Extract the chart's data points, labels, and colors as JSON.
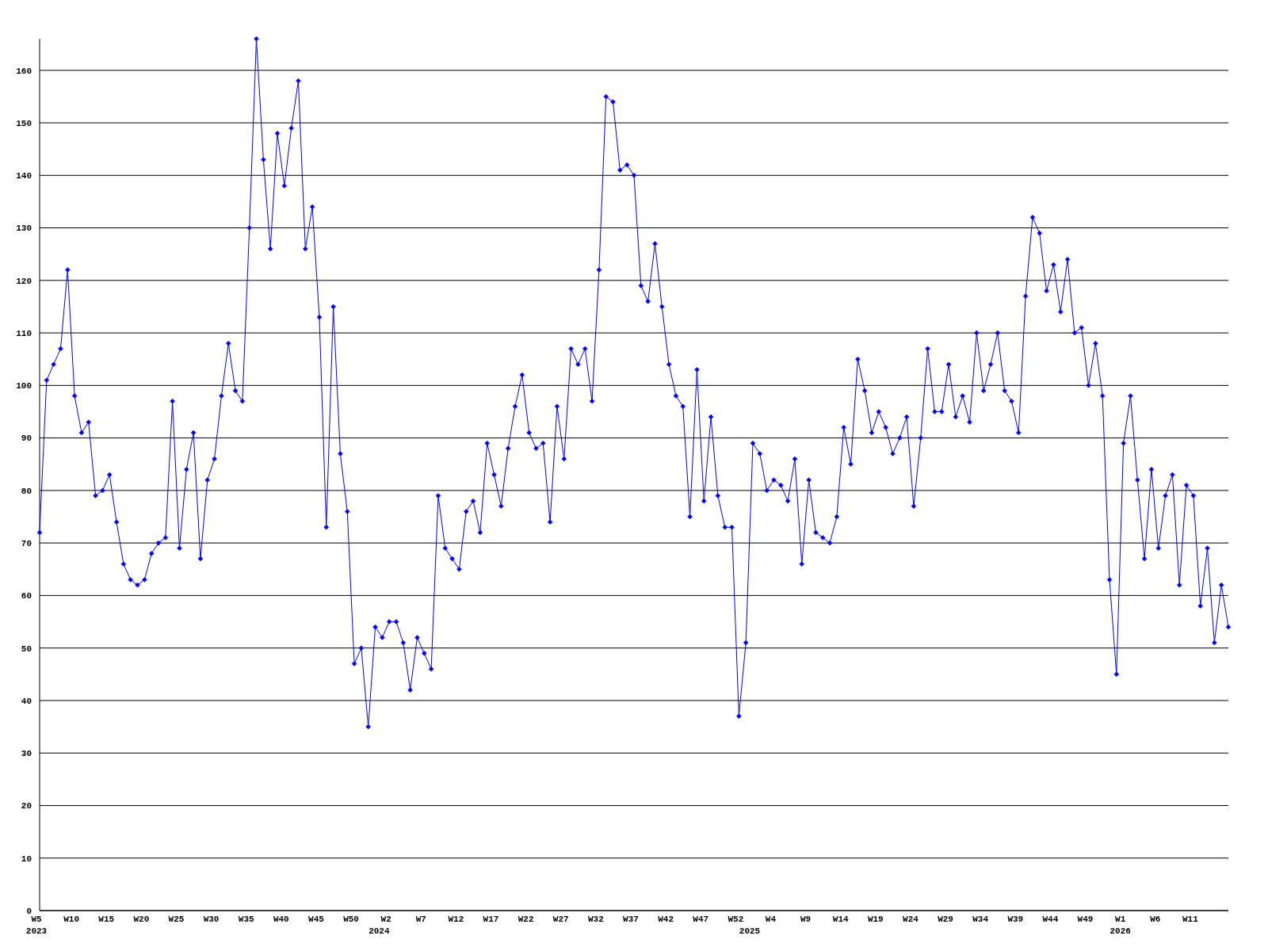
{
  "chart_data": {
    "type": "line",
    "categories": [
      "W5\n2023",
      null,
      null,
      null,
      null,
      "W10",
      null,
      null,
      null,
      null,
      "W15",
      null,
      null,
      null,
      null,
      "W20",
      null,
      null,
      null,
      null,
      "W25",
      null,
      null,
      null,
      null,
      "W30",
      null,
      null,
      null,
      null,
      "W35",
      null,
      null,
      null,
      null,
      "W40",
      null,
      null,
      null,
      null,
      "W45",
      null,
      null,
      null,
      null,
      "W50",
      null,
      null,
      null,
      "\n2024",
      "W2",
      null,
      null,
      null,
      null,
      "W7",
      null,
      null,
      null,
      null,
      "W12",
      null,
      null,
      null,
      null,
      "W17",
      null,
      null,
      null,
      null,
      "W22",
      null,
      null,
      null,
      null,
      "W27",
      null,
      null,
      null,
      null,
      "W32",
      null,
      null,
      null,
      null,
      "W37",
      null,
      null,
      null,
      null,
      "W42",
      null,
      null,
      null,
      null,
      "W47",
      null,
      null,
      null,
      null,
      "W52",
      null,
      "\n2025",
      null,
      null,
      "W4",
      null,
      null,
      null,
      null,
      "W9",
      null,
      null,
      null,
      null,
      "W14",
      null,
      null,
      null,
      null,
      "W19",
      null,
      null,
      null,
      null,
      "W24",
      null,
      null,
      null,
      null,
      "W29",
      null,
      null,
      null,
      null,
      "W34",
      null,
      null,
      null,
      null,
      "W39",
      null,
      null,
      null,
      null,
      "W44",
      null,
      null,
      null,
      null,
      "W49",
      null,
      null,
      null,
      null,
      "W1\n2026",
      null,
      null,
      null,
      null,
      "W6",
      null,
      null,
      null,
      null,
      "W11",
      null,
      null,
      null,
      null,
      null
    ],
    "series": [
      {
        "color": "#0000ff",
        "values": [
          72,
          101,
          104,
          107,
          122,
          98,
          91,
          93,
          79,
          80,
          83,
          74,
          66,
          63,
          62,
          63,
          68,
          70,
          71,
          97,
          69,
          84,
          91,
          67,
          82,
          86,
          98,
          108,
          99,
          97,
          130,
          166,
          143,
          126,
          148,
          138,
          149,
          158,
          126,
          134,
          113,
          73,
          115,
          87,
          76,
          47,
          50,
          35,
          54,
          52,
          55,
          55,
          51,
          42,
          52,
          49,
          46,
          79,
          69,
          67,
          65,
          76,
          78,
          72,
          89,
          83,
          77,
          88,
          96,
          102,
          91,
          88,
          89,
          74,
          96,
          86,
          107,
          104,
          107,
          97,
          122,
          155,
          154,
          141,
          142,
          140,
          119,
          116,
          127,
          115,
          104,
          98,
          96,
          75,
          103,
          78,
          94,
          79,
          73,
          73,
          37,
          51,
          89,
          87,
          80,
          82,
          81,
          78,
          86,
          66,
          82,
          72,
          71,
          70,
          75,
          92,
          85,
          105,
          99,
          91,
          95,
          92,
          87,
          90,
          94,
          77,
          90,
          107,
          95,
          95,
          104,
          94,
          98,
          93,
          110,
          99,
          104,
          110,
          99,
          97,
          91,
          117,
          132,
          129,
          118,
          123,
          114,
          124,
          110,
          111,
          100,
          108,
          98,
          63,
          45,
          89,
          98,
          82,
          67,
          84,
          69,
          79,
          83,
          62,
          81,
          79,
          58,
          69,
          51,
          62,
          54
        ]
      }
    ],
    "ylim": [
      0,
      166
    ],
    "yticks": [
      0,
      10,
      20,
      30,
      40,
      50,
      60,
      70,
      80,
      90,
      100,
      110,
      120,
      130,
      140,
      150,
      160
    ],
    "grid": "y",
    "marker": "diamond",
    "line_style": "solid"
  }
}
